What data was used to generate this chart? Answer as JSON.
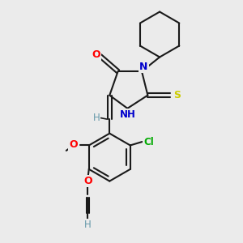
{
  "bg_color": "#ebebeb",
  "bond_color": "#1a1a1a",
  "atom_colors": {
    "O": "#ff0000",
    "N": "#0000cc",
    "S": "#cccc00",
    "Cl": "#00aa00",
    "C": "#1a1a1a",
    "H": "#6699aa"
  },
  "figsize": [
    3.0,
    3.0
  ],
  "dpi": 100
}
